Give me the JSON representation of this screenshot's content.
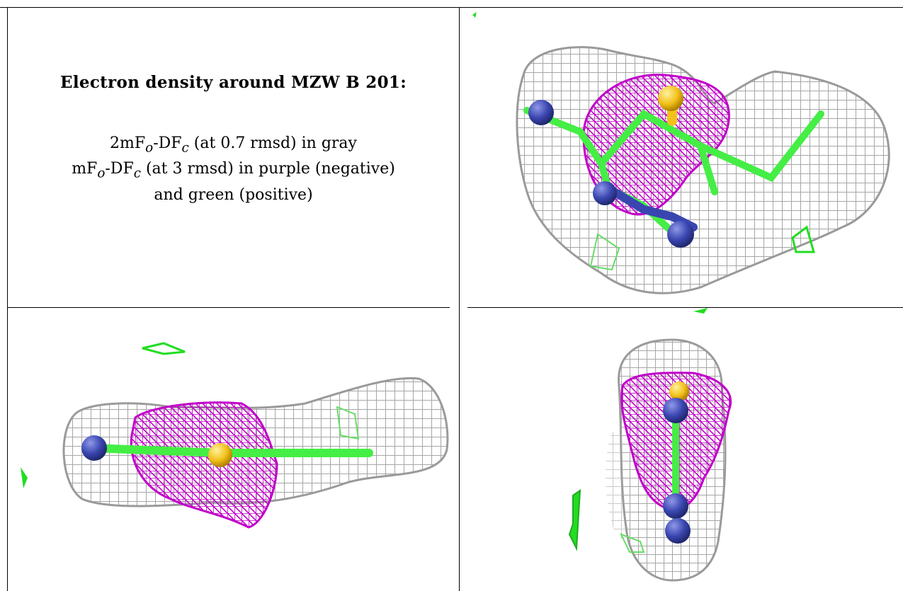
{
  "title": "Electron density around MZW B 201:",
  "legend": {
    "line1": {
      "prefix": "2mF",
      "sub1": "o",
      "mid": "-DF",
      "sub2": "c",
      "suffix": " (at 0.7 rmsd) in gray"
    },
    "line2": {
      "prefix": "mF",
      "sub1": "o",
      "mid": "-DF",
      "sub2": "c",
      "suffix": " (at 3 rmsd) in purple (negative)"
    },
    "line3": "and green (positive)"
  },
  "colors": {
    "gray_mesh": "#a8a8a8",
    "purple_mesh": "#c000c8",
    "green_mesh": "#22dd22",
    "nitrogen": "#3a46b0",
    "sulfur": "#f2c21a",
    "carbon": "#44ee44"
  },
  "panels": [
    {
      "id": "view-1",
      "description_icon": "electron-density-mesh"
    },
    {
      "id": "view-2",
      "description_icon": "electron-density-mesh"
    },
    {
      "id": "view-3",
      "description_icon": "electron-density-mesh"
    }
  ]
}
